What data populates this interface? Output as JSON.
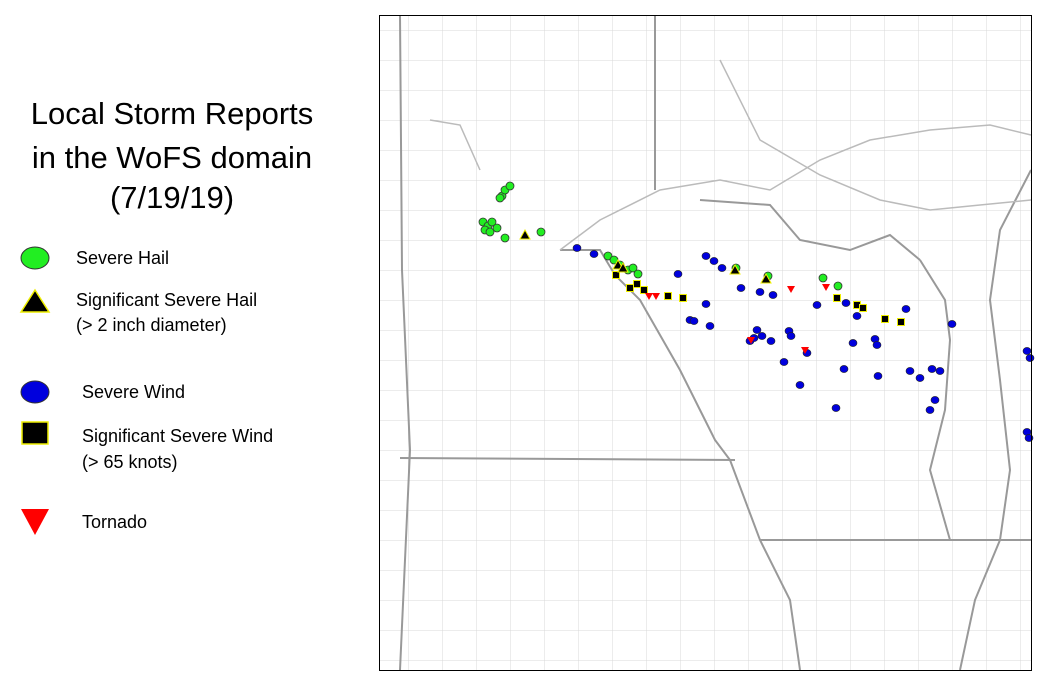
{
  "title": {
    "lines": [
      "Local Storm Reports",
      "in the WoFS domain",
      "(7/19/19)"
    ]
  },
  "legend": {
    "items": [
      {
        "label": "Severe Hail"
      },
      {
        "label": "Significant Severe Hail",
        "note": "(> 2 inch diameter)"
      },
      {
        "label": "Severe Wind"
      },
      {
        "label": "Significant Severe Wind",
        "note": "(> 65 knots)"
      },
      {
        "label": "Tornado"
      }
    ]
  }
}
